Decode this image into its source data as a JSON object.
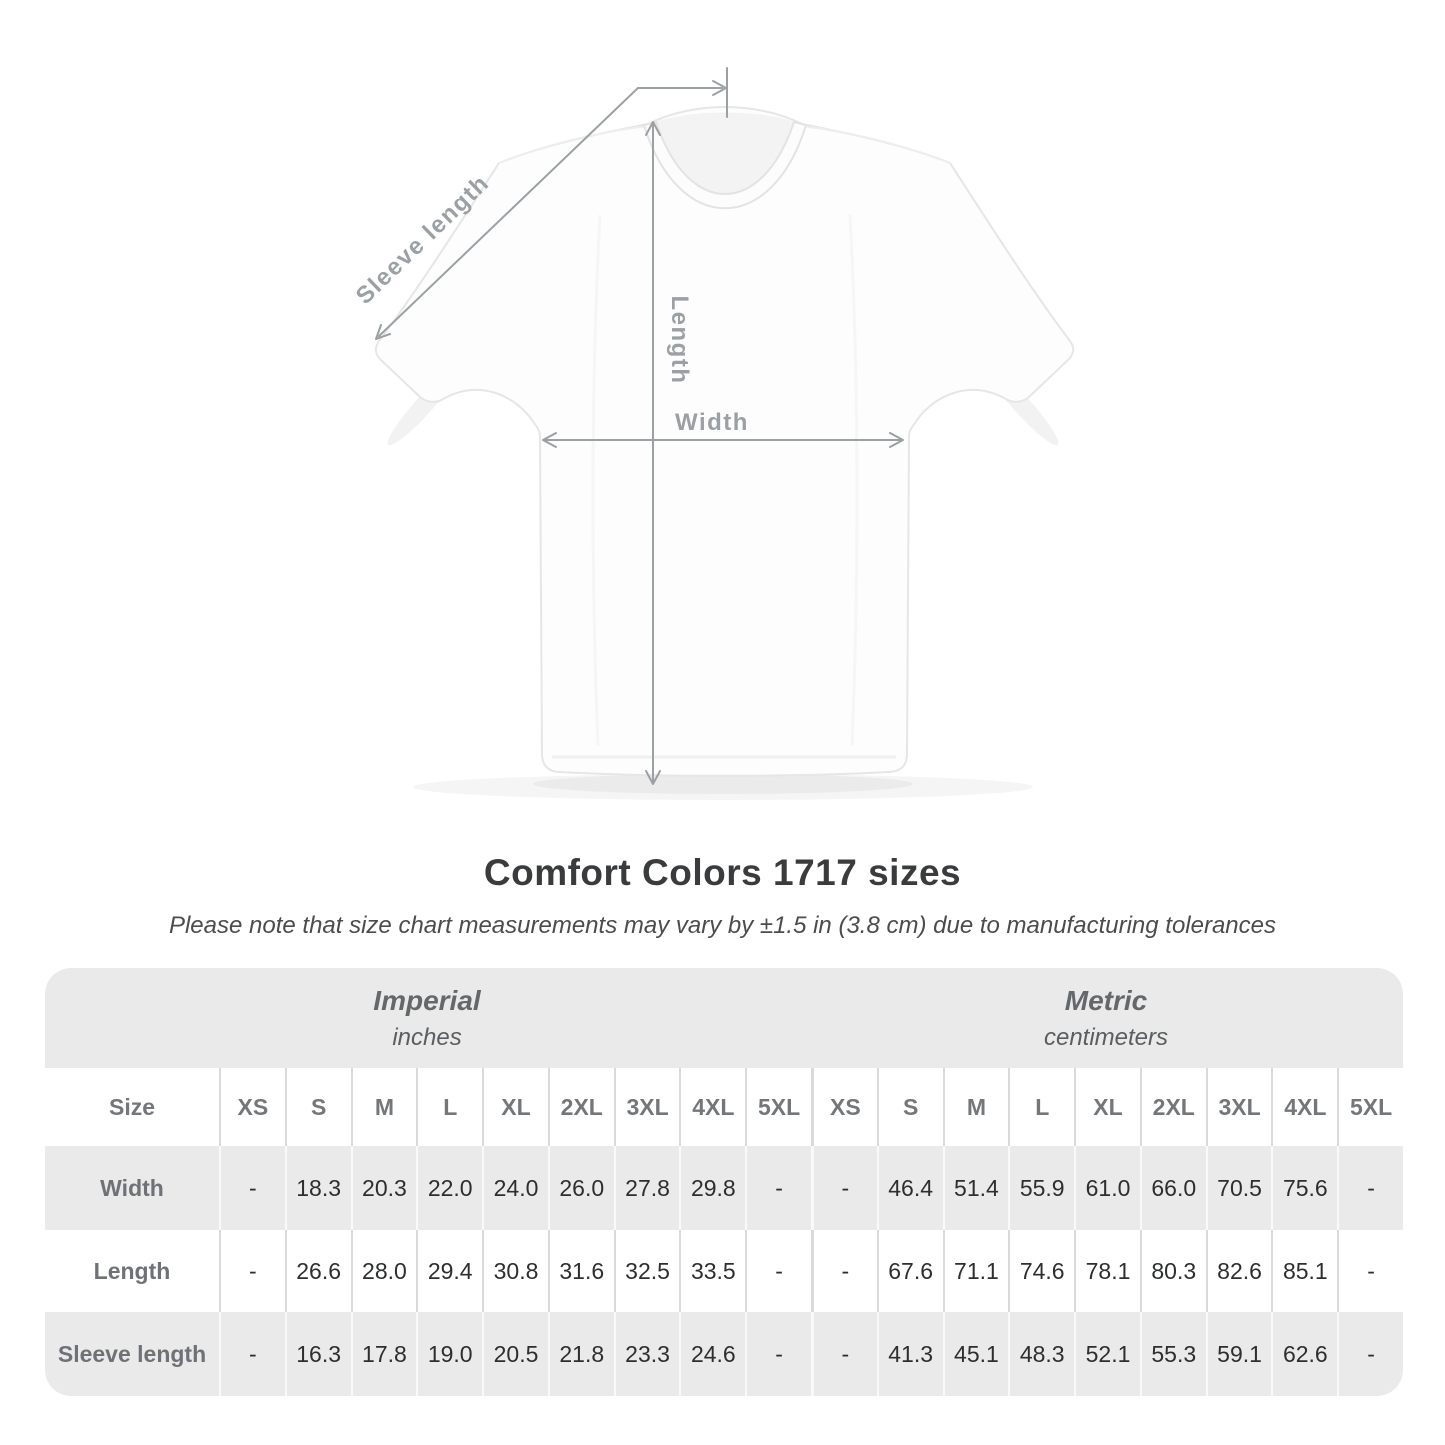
{
  "title": "Comfort Colors 1717 sizes",
  "subtitle": "Please note that size chart measurements may vary by ±1.5 in (3.8 cm) due to manufacturing tolerances",
  "diagram": {
    "labels": {
      "sleeve_length": "Sleeve length",
      "length": "Length",
      "width": "Width"
    },
    "colors": {
      "dimension_gray": "#9aa0a3",
      "shirt_outline": "#e6e6e6"
    }
  },
  "size_table": {
    "colors": {
      "band_gray": "#eaeaea",
      "header_text": "#73777a",
      "value_text": "#2d2e2f"
    },
    "sections": [
      {
        "name": "Imperial",
        "unit": "inches"
      },
      {
        "name": "Metric",
        "unit": "centimeters"
      }
    ],
    "size_header_label": "Size",
    "sizes": [
      "XS",
      "S",
      "M",
      "L",
      "XL",
      "2XL",
      "3XL",
      "4XL",
      "5XL"
    ],
    "rows": [
      {
        "label": "Width",
        "imperial": [
          "-",
          "18.3",
          "20.3",
          "22.0",
          "24.0",
          "26.0",
          "27.8",
          "29.8",
          "-"
        ],
        "metric": [
          "-",
          "46.4",
          "51.4",
          "55.9",
          "61.0",
          "66.0",
          "70.5",
          "75.6",
          "-"
        ]
      },
      {
        "label": "Length",
        "imperial": [
          "-",
          "26.6",
          "28.0",
          "29.4",
          "30.8",
          "31.6",
          "32.5",
          "33.5",
          "-"
        ],
        "metric": [
          "-",
          "67.6",
          "71.1",
          "74.6",
          "78.1",
          "80.3",
          "82.6",
          "85.1",
          "-"
        ]
      },
      {
        "label": "Sleeve length",
        "imperial": [
          "-",
          "16.3",
          "17.8",
          "19.0",
          "20.5",
          "21.8",
          "23.3",
          "24.6",
          "-"
        ],
        "metric": [
          "-",
          "41.3",
          "45.1",
          "48.3",
          "52.1",
          "55.3",
          "59.1",
          "62.6",
          "-"
        ]
      }
    ]
  },
  "chart_data": {
    "type": "table",
    "title": "Comfort Colors 1717 sizes",
    "column_groups": [
      "Imperial (inches)",
      "Metric (centimeters)"
    ],
    "columns": [
      "XS",
      "S",
      "M",
      "L",
      "XL",
      "2XL",
      "3XL",
      "4XL",
      "5XL"
    ],
    "rows": [
      {
        "measure": "Width",
        "imperial": [
          null,
          18.3,
          20.3,
          22.0,
          24.0,
          26.0,
          27.8,
          29.8,
          null
        ],
        "metric": [
          null,
          46.4,
          51.4,
          55.9,
          61.0,
          66.0,
          70.5,
          75.6,
          null
        ]
      },
      {
        "measure": "Length",
        "imperial": [
          null,
          26.6,
          28.0,
          29.4,
          30.8,
          31.6,
          32.5,
          33.5,
          null
        ],
        "metric": [
          null,
          67.6,
          71.1,
          74.6,
          78.1,
          80.3,
          82.6,
          85.1,
          null
        ]
      },
      {
        "measure": "Sleeve length",
        "imperial": [
          null,
          16.3,
          17.8,
          19.0,
          20.5,
          21.8,
          23.3,
          24.6,
          null
        ],
        "metric": [
          null,
          41.3,
          45.1,
          48.3,
          52.1,
          55.3,
          59.1,
          62.6,
          null
        ]
      }
    ]
  }
}
